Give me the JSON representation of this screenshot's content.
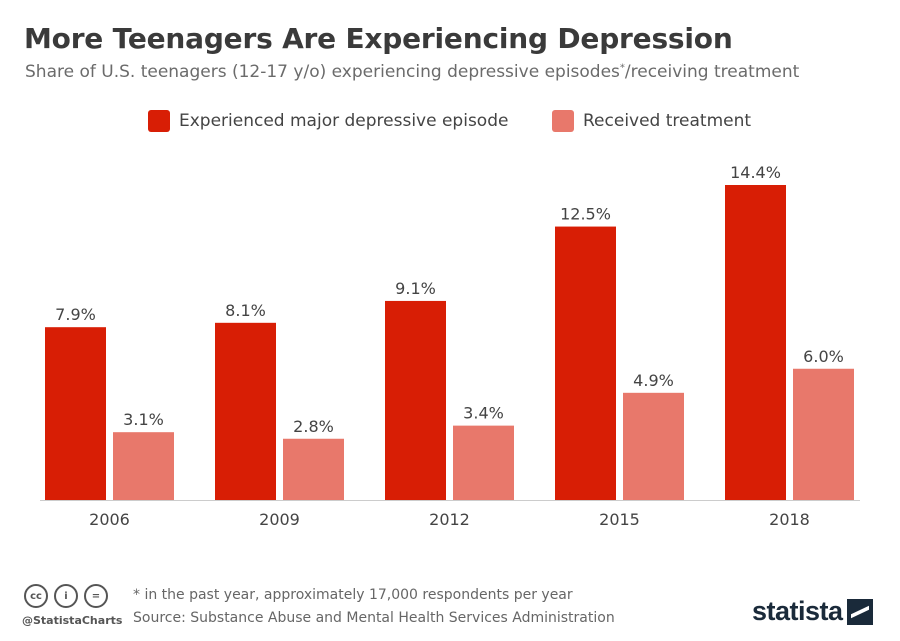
{
  "title": "More Teenagers Are Experiencing Depression",
  "subtitle": "Share of U.S. teenagers (12-17 y/o) experiencing depressive episodes",
  "subtitle_mark": "*",
  "subtitle_end": "/receiving treatment",
  "colors": {
    "series_major": "#d81e05",
    "series_treatment": "#e8786b",
    "baseline": "#cccccc"
  },
  "chart_data": {
    "type": "bar",
    "categories": [
      "2006",
      "2009",
      "2012",
      "2015",
      "2018"
    ],
    "series": [
      {
        "name": "Experienced major depressive episode",
        "values": [
          7.9,
          8.1,
          9.1,
          12.5,
          14.4
        ],
        "labels": [
          "7.9%",
          "8.1%",
          "9.1%",
          "12.5%",
          "14.4%"
        ]
      },
      {
        "name": "Received treatment",
        "values": [
          3.1,
          2.8,
          3.4,
          4.9,
          6.0
        ],
        "labels": [
          "3.1%",
          "2.8%",
          "3.4%",
          "4.9%",
          "6.0%"
        ]
      }
    ],
    "unit": "%",
    "ylim": [
      0,
      14.4
    ],
    "grid": false,
    "legend": "top-center"
  },
  "footer": {
    "icons": [
      "cc-icon",
      "person-icon",
      "equal-icon"
    ],
    "cc_glyphs": [
      "cc",
      "i",
      "="
    ],
    "handle": "@StatistaCharts",
    "note": "* in the past year, approximately 17,000 respondents per year",
    "source": "Source: Substance Abuse and Mental Health Services Administration",
    "brand": "statista"
  }
}
